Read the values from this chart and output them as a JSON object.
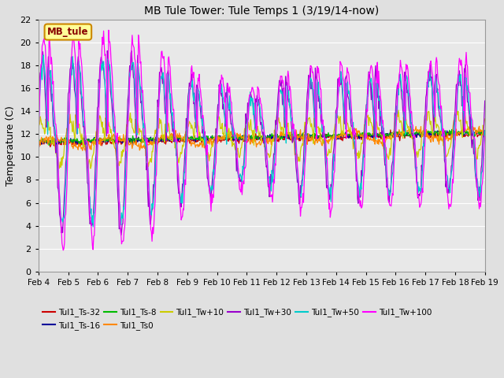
{
  "title": "MB Tule Tower: Tule Temps 1 (3/19/14-now)",
  "ylabel": "Temperature (C)",
  "ylim": [
    0,
    22
  ],
  "yticks": [
    0,
    2,
    4,
    6,
    8,
    10,
    12,
    14,
    16,
    18,
    20,
    22
  ],
  "background_color": "#e0e0e0",
  "plot_bg_color": "#e8e8e8",
  "grid_color": "#ffffff",
  "legend_label": "MB_tule",
  "legend_box_color": "#ffff99",
  "legend_box_border": "#cc8800",
  "series": [
    {
      "label": "Tul1_Ts-32",
      "color": "#cc0000"
    },
    {
      "label": "Tul1_Ts-16",
      "color": "#000099"
    },
    {
      "label": "Tul1_Ts-8",
      "color": "#00bb00"
    },
    {
      "label": "Tul1_Ts0",
      "color": "#ff8800"
    },
    {
      "label": "Tul1_Tw+10",
      "color": "#cccc00"
    },
    {
      "label": "Tul1_Tw+30",
      "color": "#9900cc"
    },
    {
      "label": "Tul1_Tw+50",
      "color": "#00cccc"
    },
    {
      "label": "Tul1_Tw+100",
      "color": "#ff00ff"
    }
  ],
  "x_label_days": [
    4,
    5,
    6,
    7,
    8,
    9,
    10,
    11,
    12,
    13,
    14,
    15,
    16,
    17,
    18,
    19
  ]
}
